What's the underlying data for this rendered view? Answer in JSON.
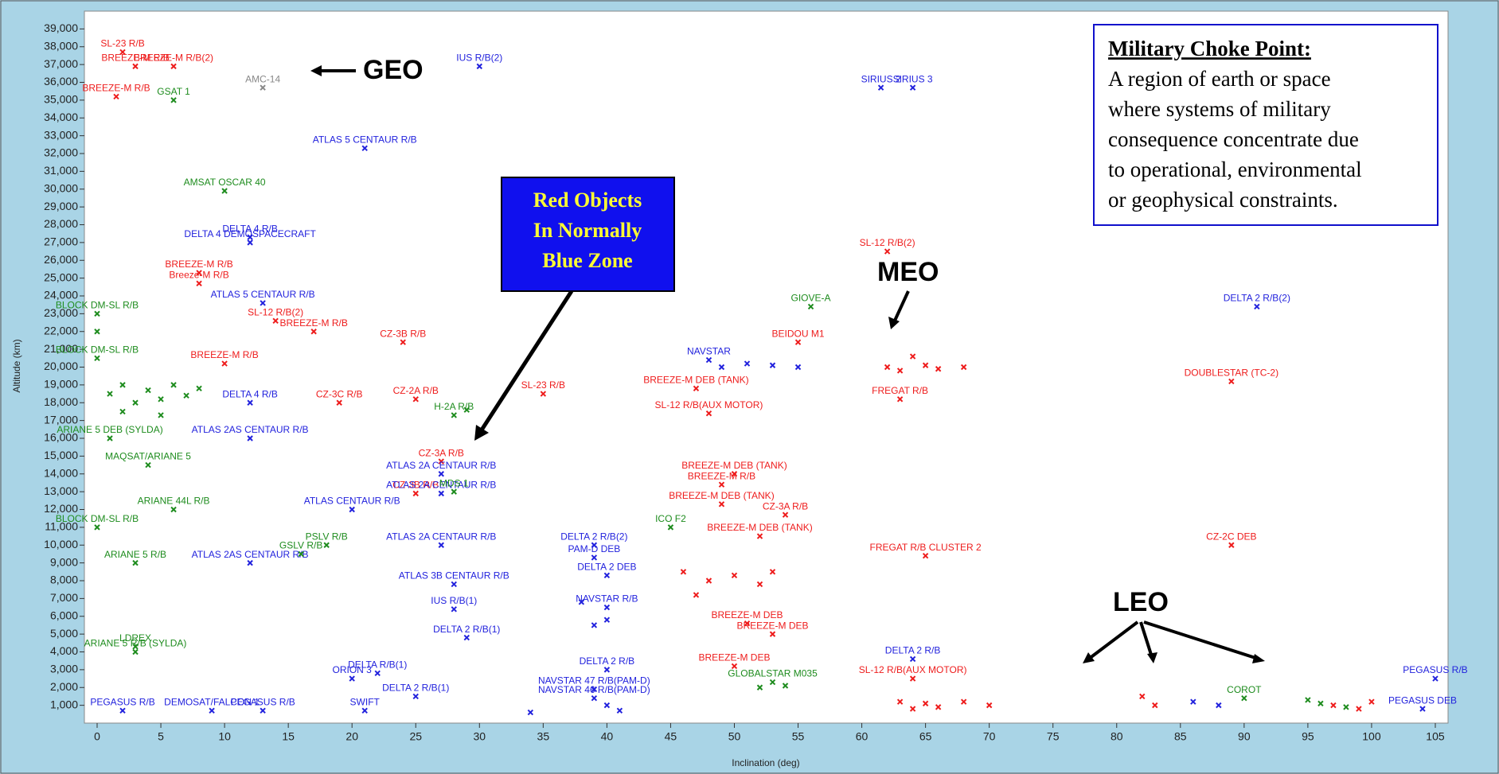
{
  "chart_data": {
    "type": "scatter",
    "x_label": "Inclination (deg)",
    "y_label": "Altitude (km)",
    "xlim": [
      -1,
      106
    ],
    "ylim": [
      0,
      40000
    ],
    "xticks": [
      0,
      5,
      10,
      15,
      20,
      25,
      30,
      35,
      40,
      45,
      50,
      55,
      60,
      65,
      70,
      75,
      80,
      85,
      90,
      95,
      100,
      105
    ],
    "yticks": [
      {
        "value": 1000,
        "label": "1,000"
      },
      {
        "value": 2000,
        "label": "2,000"
      },
      {
        "value": 3000,
        "label": "3,000"
      },
      {
        "value": 4000,
        "label": "4,000"
      },
      {
        "value": 5000,
        "label": "5,000"
      },
      {
        "value": 6000,
        "label": "6,000"
      },
      {
        "value": 7000,
        "label": "7,000"
      },
      {
        "value": 8000,
        "label": "8,000"
      },
      {
        "value": 9000,
        "label": "9,000"
      },
      {
        "value": 10000,
        "label": "10,000"
      },
      {
        "value": 11000,
        "label": "11,000"
      },
      {
        "value": 12000,
        "label": "12,000"
      },
      {
        "value": 13000,
        "label": "13,000"
      },
      {
        "value": 14000,
        "label": "14,000"
      },
      {
        "value": 15000,
        "label": "15,000"
      },
      {
        "value": 16000,
        "label": "16,000"
      },
      {
        "value": 17000,
        "label": "17,000"
      },
      {
        "value": 18000,
        "label": "18,000"
      },
      {
        "value": 19000,
        "label": "19,000"
      },
      {
        "value": 20000,
        "label": "20,000"
      },
      {
        "value": 21000,
        "label": "21,000"
      },
      {
        "value": 22000,
        "label": "22,000"
      },
      {
        "value": 23000,
        "label": "23,000"
      },
      {
        "value": 24000,
        "label": "24,000"
      },
      {
        "value": 25000,
        "label": "25,000"
      },
      {
        "value": 26000,
        "label": "26,000"
      },
      {
        "value": 27000,
        "label": "27,000"
      },
      {
        "value": 28000,
        "label": "28,000"
      },
      {
        "value": 29000,
        "label": "29,000"
      },
      {
        "value": 30000,
        "label": "30,000"
      },
      {
        "value": 31000,
        "label": "31,000"
      },
      {
        "value": 32000,
        "label": "32,000"
      },
      {
        "value": 33000,
        "label": "33,000"
      },
      {
        "value": 34000,
        "label": "34,000"
      },
      {
        "value": 35000,
        "label": "35,000"
      },
      {
        "value": 36000,
        "label": "36,000"
      },
      {
        "value": 37000,
        "label": "37,000"
      },
      {
        "value": 38000,
        "label": "38,000"
      },
      {
        "value": 39000,
        "label": "39,000"
      }
    ],
    "series": [
      {
        "color": "#ee1c1c",
        "x": [
          2,
          3,
          6,
          1.5,
          8,
          8,
          14,
          17,
          24,
          10,
          19,
          25,
          27,
          25,
          35,
          47,
          48,
          55,
          62,
          63,
          89,
          89,
          50,
          49,
          49,
          54,
          52,
          65,
          51,
          53,
          50,
          64,
          62,
          63,
          65,
          66,
          68,
          64,
          46,
          48,
          50,
          52,
          53,
          47,
          63,
          64,
          65,
          66,
          68,
          70,
          97,
          99,
          100,
          82,
          83
        ],
        "values": [
          37700,
          36900,
          36900,
          35200,
          25300,
          24700,
          22600,
          22000,
          21400,
          20200,
          18000,
          18200,
          14700,
          12900,
          18500,
          18800,
          17400,
          21400,
          26500,
          18200,
          19200,
          10000,
          14000,
          13400,
          12300,
          11700,
          10500,
          9400,
          5600,
          5000,
          3200,
          2500,
          20000,
          19800,
          20100,
          19900,
          20000,
          20600,
          8500,
          8000,
          8300,
          7800,
          8500,
          7200,
          1200,
          800,
          1100,
          900,
          1200,
          1000,
          1000,
          800,
          1200,
          1500,
          1000
        ],
        "labels": [
          "SL-23 R/B",
          "BREEZE-M R/B",
          "BREEZE-M R/B(2)",
          "BREEZE-M R/B",
          "BREEZE-M R/B",
          "Breeze-M R/B",
          "SL-12 R/B(2)",
          "BREEZE-M R/B",
          "CZ-3B R/B",
          "BREEZE-M R/B",
          "CZ-3C R/B",
          "CZ-2A R/B",
          "CZ-3A R/B",
          "CZ-3B R/B",
          "SL-23 R/B",
          "BREEZE-M DEB (TANK)",
          "SL-12 R/B(AUX MOTOR)",
          "BEIDOU M1",
          "SL-12 R/B(2)",
          "FREGAT R/B",
          "DOUBLESTAR (TC-2)",
          "CZ-2C DEB",
          "BREEZE-M DEB (TANK)",
          "BREEZE-M R/B",
          "BREEZE-M DEB (TANK)",
          "CZ-3A R/B",
          "BREEZE-M DEB (TANK)",
          "FREGAT R/B CLUSTER 2",
          "BREEZE-M DEB",
          "BREEZE-M DEB",
          "BREEZE-M DEB",
          "SL-12 R/B(AUX MOTOR)",
          null,
          null,
          null,
          null,
          null,
          null,
          null,
          null,
          null,
          null,
          null,
          null,
          null,
          null,
          null,
          null,
          null,
          null,
          null,
          null,
          null,
          null,
          null
        ]
      },
      {
        "color": "#2222dd",
        "x": [
          30,
          61.5,
          64,
          21,
          12,
          12,
          13,
          12,
          12,
          27,
          27,
          20,
          27,
          12,
          28,
          28,
          29,
          20,
          22,
          25,
          21,
          2,
          9,
          13,
          39,
          39,
          40,
          39,
          40,
          39,
          40,
          48,
          64,
          91,
          105,
          104,
          49,
          51,
          53,
          55,
          39,
          40,
          38,
          40,
          41,
          34,
          86,
          88
        ],
        "values": [
          36900,
          35700,
          35700,
          32300,
          27300,
          27000,
          23600,
          18000,
          16000,
          14000,
          12900,
          12000,
          10000,
          9000,
          7800,
          6400,
          4800,
          2500,
          2800,
          1500,
          700,
          700,
          700,
          700,
          1400,
          1900,
          3000,
          9300,
          8300,
          10000,
          6500,
          20400,
          3600,
          23400,
          2500,
          800,
          20000,
          20200,
          20100,
          20000,
          5500,
          5800,
          6800,
          1000,
          700,
          600,
          1200,
          1000
        ],
        "labels": [
          "IUS R/B(2)",
          "SIRIUS 2",
          "SIRIUS 3",
          "ATLAS 5 CENTAUR R/B",
          "DELTA 4 R/B",
          "DELTA 4 DEMOSPACECRAFT",
          "ATLAS 5 CENTAUR R/B",
          "DELTA 4 R/B",
          "ATLAS 2AS CENTAUR R/B",
          "ATLAS 2A CENTAUR R/B",
          "ATLAS 2A CENTAUR R/B",
          "ATLAS CENTAUR R/B",
          "ATLAS 2A CENTAUR R/B",
          "ATLAS 2AS CENTAUR R/B",
          "ATLAS 3B CENTAUR R/B",
          "IUS R/B(1)",
          "DELTA 2 R/B(1)",
          "ORION 3",
          "DELTA R/B(1)",
          "DELTA 2 R/B(1)",
          "SWIFT",
          "PEGASUS R/B",
          "DEMOSAT/FALCON 1",
          "PEGASUS R/B",
          "NAVSTAR 46 R/B(PAM-D)",
          "NAVSTAR 47 R/B(PAM-D)",
          "DELTA 2 R/B",
          "PAM-D DEB",
          "DELTA 2 DEB",
          "DELTA 2 R/B(2)",
          "NAVSTAR R/B",
          "NAVSTAR",
          "DELTA 2 R/B",
          "DELTA 2 R/B(2)",
          "PEGASUS R/B",
          "PEGASUS DEB",
          null,
          null,
          null,
          null,
          null,
          null,
          null,
          null,
          null,
          null,
          null,
          null
        ]
      },
      {
        "color": "#1e8c1e",
        "x": [
          6,
          10,
          0,
          0,
          0,
          1,
          4,
          6,
          0,
          28,
          28,
          16,
          18,
          3,
          3,
          3,
          53,
          56,
          90,
          45,
          1,
          2,
          3,
          4,
          5,
          6,
          7,
          8,
          2,
          5,
          29,
          52,
          54,
          96,
          98,
          95
        ],
        "values": [
          35000,
          29900,
          23000,
          22000,
          20500,
          16000,
          14500,
          12000,
          11000,
          17300,
          13000,
          9500,
          10000,
          9000,
          4300,
          4000,
          2300,
          23400,
          1400,
          11000,
          18500,
          19000,
          18000,
          18700,
          18200,
          19000,
          18400,
          18800,
          17500,
          17300,
          17600,
          2000,
          2100,
          1100,
          900,
          1300
        ],
        "labels": [
          "GSAT 1",
          "AMSAT OSCAR 40",
          "BLOCK DM-SL R/B",
          null,
          "BLOCK DM-SL R/B",
          "ARIANE 5 DEB (SYLDA)",
          "MAQSAT/ARIANE 5",
          "ARIANE 44L R/B",
          "BLOCK DM-SL R/B",
          "H-2A R/B",
          "MDS 1",
          "GSLV R/B",
          "PSLV R/B",
          "ARIANE 5 R/B",
          "LDREX",
          "ARIANE 5 R/B (SYLDA)",
          "GLOBALSTAR M035",
          "GIOVE-A",
          "COROT",
          "ICO F2",
          null,
          null,
          null,
          null,
          null,
          null,
          null,
          null,
          null,
          null,
          null,
          null,
          null,
          null,
          null,
          null
        ]
      },
      {
        "color": "#888888",
        "x": [
          13
        ],
        "values": [
          35700
        ],
        "labels": [
          "AMC-14"
        ]
      }
    ],
    "annotations": {
      "geo": "GEO",
      "meo": "MEO",
      "leo": "LEO",
      "red_box": [
        "Red Objects",
        "In Normally",
        "Blue Zone"
      ],
      "definition_title": "Military Choke Point:",
      "definition_body": [
        "A region of earth or space",
        "where systems of military",
        "consequence concentrate due",
        "to operational, environmental",
        "or geophysical constraints."
      ]
    }
  }
}
